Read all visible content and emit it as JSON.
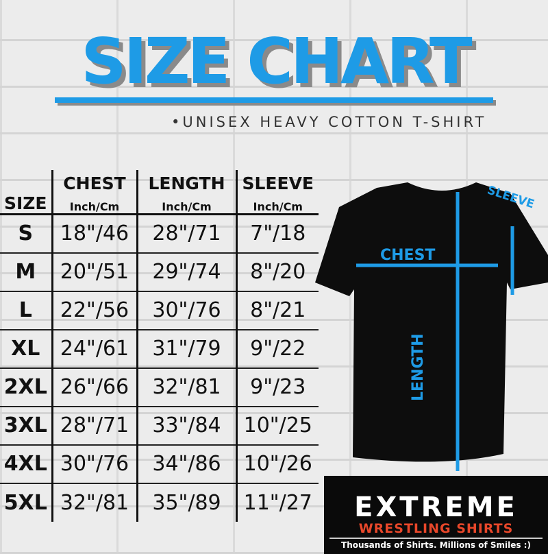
{
  "title": "SIZE CHART",
  "subtitle": "•UNISEX HEAVY COTTON T-SHIRT",
  "table": {
    "headers": [
      {
        "label": "SIZE",
        "unit": ""
      },
      {
        "label": "CHEST",
        "unit": "Inch/Cm"
      },
      {
        "label": "LENGTH",
        "unit": "Inch/Cm"
      },
      {
        "label": "SLEEVE",
        "unit": "Inch/Cm"
      }
    ],
    "rows": [
      [
        "S",
        "18\"/46",
        "28\"/71",
        "7\"/18"
      ],
      [
        "M",
        "20\"/51",
        "29\"/74",
        "8\"/20"
      ],
      [
        "L",
        "22\"/56",
        "30\"/76",
        "8\"/21"
      ],
      [
        "XL",
        "24\"/61",
        "31\"/79",
        "9\"/22"
      ],
      [
        "2XL",
        "26\"/66",
        "32\"/81",
        "9\"/23"
      ],
      [
        "3XL",
        "28\"/71",
        "33\"/84",
        "10\"/25"
      ],
      [
        "4XL",
        "30\"/76",
        "34\"/86",
        "10\"/26"
      ],
      [
        "5XL",
        "32\"/81",
        "35\"/89",
        "11\"/27"
      ]
    ]
  },
  "diagram": {
    "chest": "CHEST",
    "length": "LENGTH",
    "sleeve": "SLEEVE"
  },
  "logo": {
    "brand": "EXTREME",
    "sub": "WRESTLING SHIRTS",
    "tagline": "Thousands of Shirts. Millions of Smiles :)"
  },
  "colors": {
    "accent": "#1e9be6",
    "logo_red": "#e8472a"
  }
}
